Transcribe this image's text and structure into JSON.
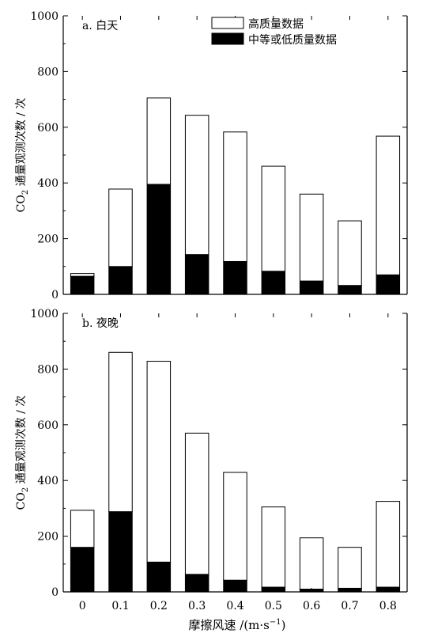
{
  "chart_data": [
    {
      "type": "bar",
      "stacked": true,
      "title": "a. 白天",
      "ylabel_main": "CO",
      "ylabel_sub": "2",
      "ylabel_rest": " 通量观测次数 / 次",
      "ylim": [
        0,
        1000
      ],
      "yticks": [
        "0",
        "200",
        "400",
        "600",
        "800",
        "1000"
      ],
      "categories": [
        "0",
        "0.1",
        "0.2",
        "0.3",
        "0.4",
        "0.5",
        "0.6",
        "0.7",
        "0.8"
      ],
      "series": [
        {
          "name": "中等或低质量数据",
          "color": "#000000",
          "values": [
            65,
            100,
            395,
            143,
            118,
            83,
            48,
            32,
            70
          ]
        },
        {
          "name": "高质量数据",
          "color": "#ffffff",
          "values": [
            10,
            278,
            310,
            500,
            465,
            377,
            312,
            232,
            498
          ]
        }
      ],
      "totals": [
        75,
        378,
        705,
        643,
        583,
        460,
        360,
        264,
        568
      ],
      "legend": [
        {
          "label": "高质量数据",
          "color": "#ffffff"
        },
        {
          "label": "中等或低质量数据",
          "color": "#000000"
        }
      ],
      "legend_position": "top-center"
    },
    {
      "type": "bar",
      "stacked": true,
      "title": "b. 夜晚",
      "ylabel_main": "CO",
      "ylabel_sub": "2",
      "ylabel_rest": " 通量观测次数 / 次",
      "ylim": [
        0,
        1000
      ],
      "yticks": [
        "0",
        "200",
        "400",
        "600",
        "800",
        "1000"
      ],
      "categories": [
        "0",
        "0.1",
        "0.2",
        "0.3",
        "0.4",
        "0.5",
        "0.6",
        "0.7",
        "0.8"
      ],
      "series": [
        {
          "name": "中等或低质量数据",
          "color": "#000000",
          "values": [
            160,
            288,
            107,
            63,
            42,
            17,
            10,
            13,
            17
          ]
        },
        {
          "name": "高质量数据",
          "color": "#ffffff",
          "values": [
            133,
            572,
            721,
            507,
            387,
            288,
            184,
            147,
            308
          ]
        }
      ],
      "totals": [
        293,
        860,
        828,
        570,
        429,
        305,
        194,
        160,
        325
      ],
      "xlabel": "摩擦风速 /(m·s",
      "xlabel_sup": "−1",
      "xlabel_end": ")"
    }
  ]
}
